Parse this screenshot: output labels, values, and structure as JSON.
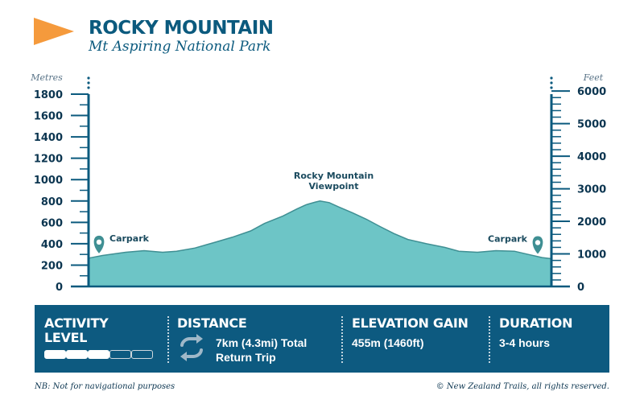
{
  "header": {
    "title": "ROCKY MOUNTAIN",
    "subtitle": "Mt Aspiring National Park",
    "flag_color": "#f59a3c"
  },
  "chart_data": {
    "type": "area",
    "left_axis_label": "Metres",
    "right_axis_label": "Feet",
    "y_metres_ticks": [
      0,
      200,
      400,
      600,
      800,
      1000,
      1200,
      1400,
      1600,
      1800
    ],
    "y_feet_ticks": [
      0,
      1000,
      2000,
      3000,
      4000,
      5000,
      6000
    ],
    "ylim_metres": [
      0,
      1800
    ],
    "x": [
      0,
      0.03,
      0.08,
      0.12,
      0.16,
      0.19,
      0.23,
      0.27,
      0.31,
      0.35,
      0.38,
      0.42,
      0.45,
      0.47,
      0.49,
      0.5,
      0.52,
      0.54,
      0.57,
      0.6,
      0.63,
      0.66,
      0.69,
      0.73,
      0.77,
      0.8,
      0.84,
      0.88,
      0.92,
      0.95,
      0.98,
      1.0
    ],
    "elevation_m": [
      265,
      290,
      320,
      335,
      320,
      330,
      360,
      410,
      460,
      520,
      590,
      660,
      725,
      765,
      790,
      800,
      785,
      745,
      690,
      630,
      560,
      495,
      440,
      400,
      365,
      330,
      320,
      335,
      330,
      300,
      270,
      260
    ],
    "annotations": [
      {
        "label": "Carpark",
        "x": 0.0,
        "elevation_m": 265,
        "marker": "pin"
      },
      {
        "label": "Rocky Mountain\nViewpoint",
        "x": 0.5,
        "elevation_m": 800,
        "marker": "none"
      },
      {
        "label": "Carpark",
        "x": 1.0,
        "elevation_m": 260,
        "marker": "pin"
      }
    ],
    "fill_color": "#6dc5c6",
    "line_color": "#3f8f93",
    "axis_color": "#0b5a7e"
  },
  "info": {
    "activity": {
      "heading": "ACTIVITY\nLEVEL",
      "level": 3,
      "max": 5
    },
    "distance": {
      "heading": "DISTANCE",
      "value": "7km (4.3mi) Total\nReturn Trip",
      "icon": "repeat-icon"
    },
    "elevation": {
      "heading": "ELEVATION GAIN",
      "value": "455m (1460ft)"
    },
    "duration": {
      "heading": "DURATION",
      "value": "3-4 hours"
    }
  },
  "footer": {
    "note": "NB: Not for navigational purposes",
    "copyright": "© New Zealand Trails, all rights reserved."
  }
}
